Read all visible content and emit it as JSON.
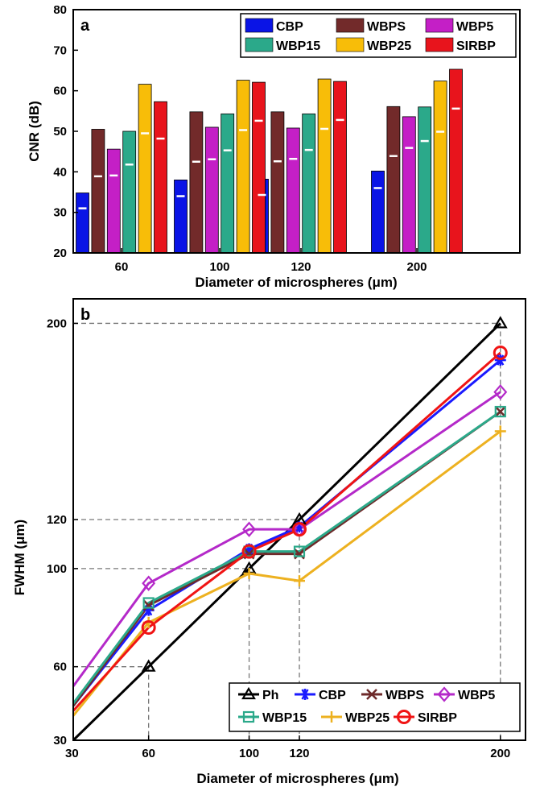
{
  "chart_data": [
    {
      "panel": "a",
      "type": "bar",
      "xlabel": "Diameter of microspheres (μm)",
      "ylabel": "CNR (dB)",
      "ylim": [
        20,
        80
      ],
      "yticks": [
        20,
        30,
        40,
        50,
        60,
        70,
        80
      ],
      "categories": [
        "60",
        "100",
        "120",
        "200"
      ],
      "legend_position": "top-right",
      "series": [
        {
          "name": "CBP",
          "color": "#0a14e6",
          "values": [
            34.8,
            38.0,
            38.2,
            40.2
          ],
          "markers": [
            31.0,
            34.0,
            34.3,
            36.0
          ]
        },
        {
          "name": "WBPS",
          "color": "#722a2a",
          "values": [
            50.5,
            54.8,
            54.8,
            56.1
          ],
          "markers": [
            38.9,
            42.5,
            42.6,
            43.9
          ]
        },
        {
          "name": "WBP5",
          "color": "#c41fc6",
          "values": [
            45.6,
            51.0,
            50.8,
            53.6
          ],
          "markers": [
            39.1,
            43.1,
            43.2,
            45.9
          ]
        },
        {
          "name": "WBP15",
          "color": "#2ba98a",
          "values": [
            50.0,
            54.3,
            54.3,
            56.0
          ],
          "markers": [
            41.8,
            45.3,
            45.4,
            47.6
          ]
        },
        {
          "name": "WBP25",
          "color": "#f8bd08",
          "values": [
            61.6,
            62.6,
            62.9,
            62.4
          ],
          "markers": [
            49.5,
            50.3,
            50.6,
            49.9
          ]
        },
        {
          "name": "SIRBP",
          "color": "#e8141c",
          "values": [
            57.3,
            62.1,
            62.3,
            65.3
          ],
          "markers": [
            48.2,
            52.6,
            52.8,
            55.6
          ]
        }
      ]
    },
    {
      "panel": "b",
      "type": "line",
      "xlabel": "Diameter of microspheres (μm)",
      "ylabel": "FWHM (μm)",
      "xlim": [
        30,
        210
      ],
      "ylim": [
        30,
        210
      ],
      "xticks": [
        30,
        60,
        100,
        120,
        200
      ],
      "yticks": [
        30,
        60,
        100,
        120,
        200
      ],
      "x": [
        30,
        60,
        100,
        120,
        200
      ],
      "reference_lines": [
        60,
        100,
        120,
        200
      ],
      "legend_position": "bottom-right",
      "series": [
        {
          "name": "Ph",
          "color": "#000000",
          "marker": "triangle",
          "values": [
            30,
            60,
            100,
            120,
            200
          ]
        },
        {
          "name": "CBP",
          "color": "#1a1aff",
          "marker": "asterisk",
          "values": [
            44,
            83,
            108,
            117,
            185
          ]
        },
        {
          "name": "WBPS",
          "color": "#6e2a2a",
          "marker": "cross",
          "values": [
            44,
            85,
            106,
            106,
            164
          ]
        },
        {
          "name": "WBP5",
          "color": "#b429c9",
          "marker": "diamond",
          "values": [
            52,
            94,
            116,
            116,
            172
          ]
        },
        {
          "name": "WBP15",
          "color": "#2ba98a",
          "marker": "square",
          "values": [
            45,
            86,
            107,
            107,
            164
          ]
        },
        {
          "name": "WBP25",
          "color": "#edb120",
          "marker": "plus",
          "values": [
            40,
            78,
            98,
            95,
            156
          ]
        },
        {
          "name": "SIRBP",
          "color": "#f01414",
          "marker": "circle",
          "values": [
            42,
            76,
            107,
            116,
            188
          ]
        }
      ]
    }
  ]
}
